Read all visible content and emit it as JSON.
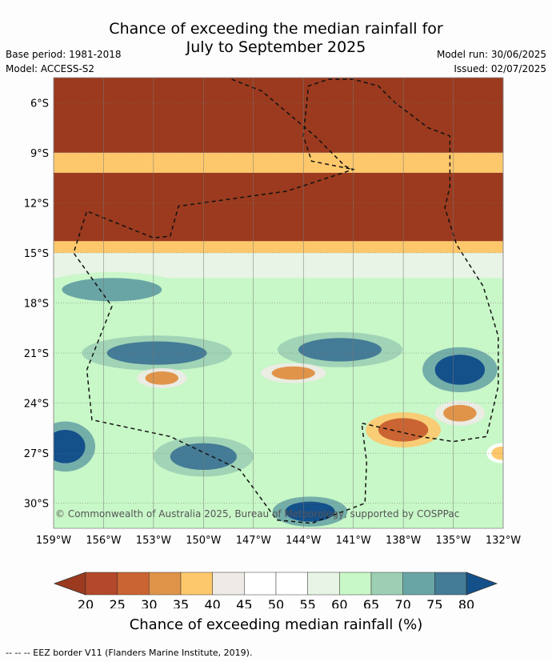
{
  "title": {
    "line1": "Chance of exceeding the median rainfall for",
    "line2": "July to September 2025"
  },
  "meta_left": {
    "base_period": "Base period: 1981-2018",
    "model": "Model: ACCESS-S2"
  },
  "meta_right": {
    "model_run": "Model run: 30/06/2025",
    "issued": "Issued: 02/07/2025"
  },
  "map": {
    "lat_labels": [
      "6°S",
      "9°S",
      "12°S",
      "15°S",
      "18°S",
      "21°S",
      "24°S",
      "27°S",
      "30°S"
    ],
    "lon_labels": [
      "159°W",
      "156°W",
      "153°W",
      "150°W",
      "147°W",
      "144°W",
      "141°W",
      "138°W",
      "135°W",
      "132°W"
    ],
    "copyright": "© Commonwealth of Australia 2025, Bureau of Meteorology, supported by COSPPac",
    "zones": [
      {
        "lat_top": 4.5,
        "lat_bottom": 9.0,
        "value": 15
      },
      {
        "lat_top": 9.0,
        "lat_bottom": 10.2,
        "value": 35
      },
      {
        "lat_top": 10.2,
        "lat_bottom": 14.3,
        "value": 15
      },
      {
        "lat_top": 14.3,
        "lat_bottom": 15.0,
        "value": 35
      },
      {
        "lat_top": 15.0,
        "lat_bottom": 16.5,
        "value": 55
      },
      {
        "lat_top": 16.5,
        "lat_bottom": 31.5,
        "value": 60
      }
    ],
    "blobs": [
      {
        "lon": -155.5,
        "lat": -17.2,
        "value": 70,
        "rx": 3.0,
        "ry": 0.7
      },
      {
        "lon": -152.8,
        "lat": -21.0,
        "value": 75,
        "rx": 3.0,
        "ry": 0.7
      },
      {
        "lon": -141.8,
        "lat": -20.8,
        "value": 75,
        "rx": 2.5,
        "ry": 0.7
      },
      {
        "lon": -134.6,
        "lat": -22.0,
        "value": 80,
        "rx": 1.5,
        "ry": 0.9
      },
      {
        "lon": -158.3,
        "lat": -26.6,
        "value": 80,
        "rx": 1.2,
        "ry": 1.0
      },
      {
        "lon": -150.0,
        "lat": -27.2,
        "value": 75,
        "rx": 2.0,
        "ry": 0.8
      },
      {
        "lon": -143.6,
        "lat": -30.5,
        "value": 80,
        "rx": 1.5,
        "ry": 0.6
      },
      {
        "lon": -138.0,
        "lat": -25.6,
        "value": 25,
        "rx": 1.5,
        "ry": 0.7
      },
      {
        "lon": -152.5,
        "lat": -22.5,
        "value": 30,
        "rx": 1.0,
        "ry": 0.4
      },
      {
        "lon": -144.6,
        "lat": -22.2,
        "value": 30,
        "rx": 1.3,
        "ry": 0.4
      },
      {
        "lon": -134.6,
        "lat": -24.6,
        "value": 30,
        "rx": 1.0,
        "ry": 0.5
      },
      {
        "lon": -132.1,
        "lat": -27.0,
        "value": 35,
        "rx": 0.6,
        "ry": 0.4
      }
    ]
  },
  "colorbar": {
    "ticks": [
      "20",
      "25",
      "30",
      "35",
      "40",
      "45",
      "50",
      "55",
      "60",
      "65",
      "70",
      "75",
      "80"
    ],
    "title": "Chance of exceeding median rainfall (%)",
    "colors": [
      "#9b3a1e",
      "#b4482a",
      "#ca6432",
      "#e0944a",
      "#fdc86c",
      "#eeeae5",
      "#ffffff",
      "#ffffff",
      "#e8f4e5",
      "#c8f7c8",
      "#9ccfb4",
      "#6aa5a5",
      "#447b96",
      "#14508a"
    ]
  },
  "footer": "--  --  -- EEZ border V11 (Flanders Marine Institute, 2019)."
}
